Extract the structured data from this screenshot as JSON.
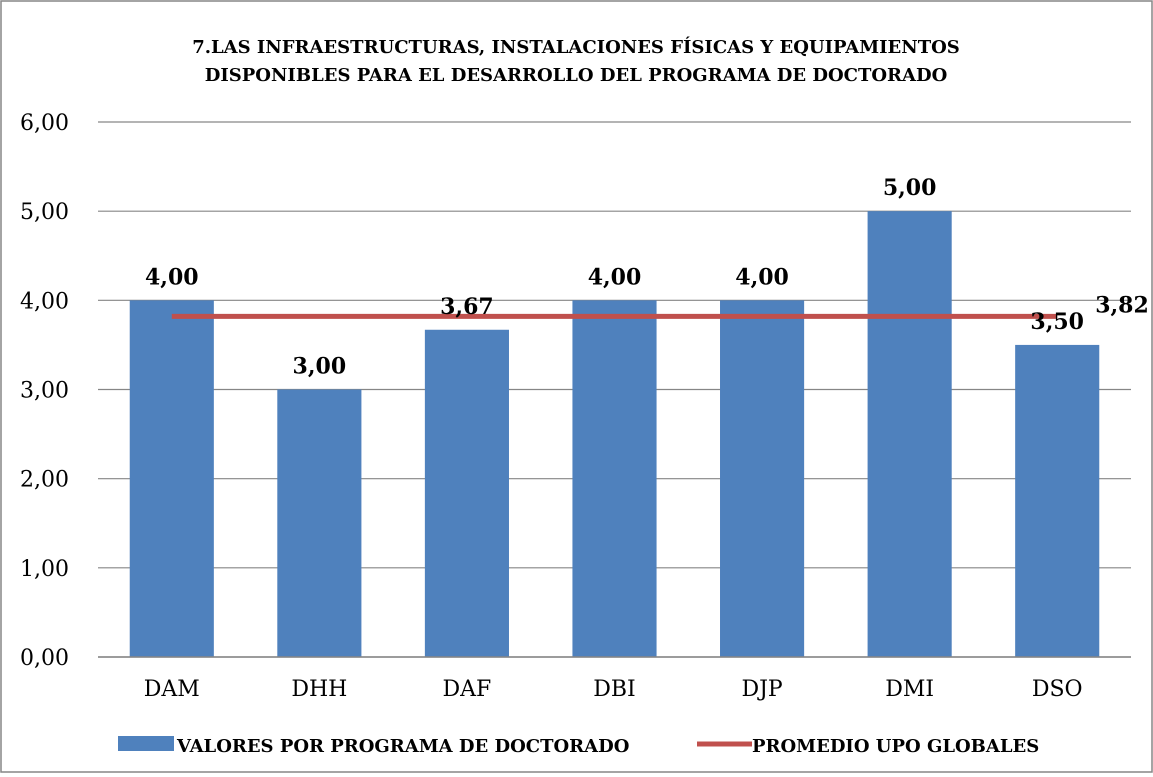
{
  "chart_data": {
    "type": "bar",
    "title_lines": [
      "7.LAS INFRAESTRUCTURAS, INSTALACIONES FÍSICAS Y EQUIPAMIENTOS",
      "DISPONIBLES PARA EL DESARROLLO DEL PROGRAMA DE DOCTORADO"
    ],
    "categories": [
      "DAM",
      "DHH",
      "DAF",
      "DBI",
      "DJP",
      "DMI",
      "DSO"
    ],
    "series": [
      {
        "name": "VALORES POR PROGRAMA DE DOCTORADO",
        "type": "bar",
        "values": [
          4.0,
          3.0,
          3.67,
          4.0,
          4.0,
          5.0,
          3.5
        ],
        "value_labels": [
          "4,00",
          "3,00",
          "3,67",
          "4,00",
          "4,00",
          "5,00",
          "3,50"
        ],
        "color": "#4F81BD"
      },
      {
        "name": "PROMEDIO UPO GLOBALES",
        "type": "line",
        "value": 3.82,
        "value_label": "3,82",
        "color": "#C0504D"
      }
    ],
    "y_ticks": [
      0,
      1,
      2,
      3,
      4,
      5,
      6
    ],
    "y_tick_labels": [
      "0,00",
      "1,00",
      "2,00",
      "3,00",
      "4,00",
      "5,00",
      "6,00"
    ],
    "ylim": [
      0,
      6
    ],
    "grid": true,
    "legend_position": "bottom",
    "gridline_color": "#868686",
    "frame_color": "#868686"
  }
}
